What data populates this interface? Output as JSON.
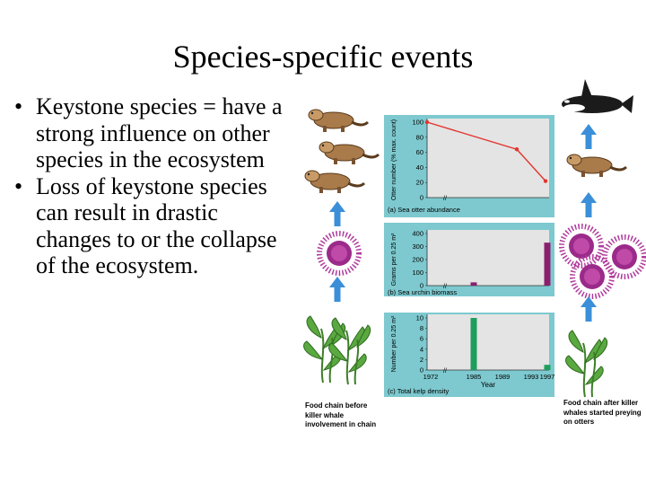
{
  "slide": {
    "title": "Species-specific events",
    "bullets": [
      "Keystone species = have a strong influence on other species in the ecosystem",
      "Loss of keystone species can result in drastic changes to or the collapse of the ecosystem."
    ],
    "bullet_symbol": "•"
  },
  "figure": {
    "left_caption": "Food chain before killer whale involvement in chain",
    "right_caption": "Food chain after killer whales started preying on otters",
    "xlabel": "Year",
    "x_ticks": [
      "1972",
      "1985",
      "1989",
      "1993",
      "1997"
    ],
    "colors": {
      "panel": "#7dc9cf",
      "line": "#e3342f",
      "urchin_bar": "#8a1f6e",
      "kelp_bar": "#1e9e5c",
      "arrow": "#3b8fd8"
    },
    "icons": [
      "sea-otter-icon",
      "sea-urchin-icon",
      "kelp-icon",
      "killer-whale-icon",
      "up-arrow-icon"
    ]
  },
  "chart_data": [
    {
      "type": "line",
      "title": "(a) Sea otter abundance",
      "ylabel": "Otter number (% max. count)",
      "ylim": [
        0,
        100
      ],
      "y_ticks": [
        "0",
        "20",
        "40",
        "60",
        "80",
        "100"
      ],
      "x": [
        1972,
        1993,
        1997
      ],
      "series": [
        {
          "values": [
            100,
            64,
            22
          ]
        }
      ]
    },
    {
      "type": "bar",
      "title": "(b) Sea urchin biomass",
      "ylabel": "Grams per 0.25 m²",
      "ylim": [
        0,
        400
      ],
      "y_ticks": [
        "0",
        "100",
        "200",
        "300",
        "400"
      ],
      "x": [
        1972,
        1985,
        1989,
        1993,
        1997
      ],
      "values": [
        0,
        25,
        0,
        0,
        330
      ]
    },
    {
      "type": "bar",
      "title": "(c) Total kelp density",
      "ylabel": "Number per 0.25 m²",
      "ylim": [
        0,
        10
      ],
      "y_ticks": [
        "0",
        "2",
        "4",
        "6",
        "8",
        "10"
      ],
      "x": [
        1972,
        1985,
        1989,
        1993,
        1997
      ],
      "values": [
        0,
        10,
        0,
        0,
        1
      ]
    }
  ]
}
